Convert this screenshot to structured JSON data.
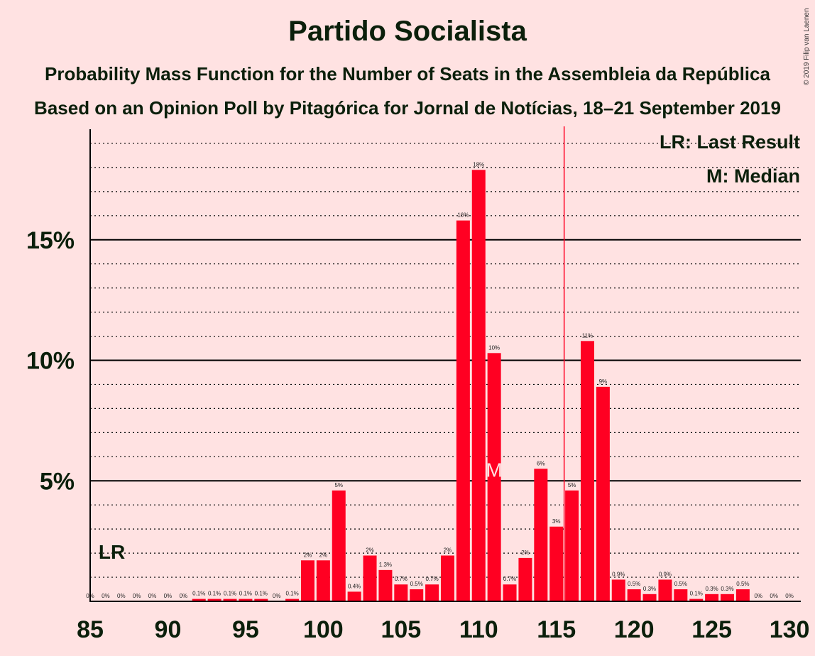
{
  "header": {
    "title": "Partido Socialista",
    "subtitle1": "Probability Mass Function for the Number of Seats in the Assembleia da República",
    "subtitle2": "Based on an Opinion Poll by Pitagórica for Jornal de Notícias, 18–21 September 2019",
    "copyright": "© 2019 Filip van Laenen"
  },
  "colors": {
    "bar": "#ff0022",
    "background": "#ffe2e2",
    "text": "#0b1f0b",
    "median_marker": "#ffe2e2",
    "last_result_line": "#ff0022"
  },
  "chart_data": {
    "type": "bar",
    "x": [
      85,
      86,
      87,
      88,
      89,
      90,
      91,
      92,
      93,
      94,
      95,
      96,
      97,
      98,
      99,
      100,
      101,
      102,
      103,
      104,
      105,
      106,
      107,
      108,
      109,
      110,
      111,
      112,
      113,
      114,
      115,
      116,
      117,
      118,
      119,
      120,
      121,
      122,
      123,
      124,
      125,
      126,
      127,
      128,
      129,
      130
    ],
    "values": [
      0,
      0,
      0,
      0,
      0,
      0,
      0,
      0.1,
      0.1,
      0.1,
      0.1,
      0.1,
      0,
      0.1,
      1.7,
      1.7,
      4.6,
      0.4,
      1.9,
      1.3,
      0.7,
      0.5,
      0.7,
      1.9,
      15.8,
      17.9,
      10.3,
      0.7,
      1.8,
      5.5,
      3.1,
      4.6,
      10.8,
      8.9,
      0.9,
      0.5,
      0.3,
      0.9,
      0.5,
      0.1,
      0.3,
      0.3,
      0.5,
      0,
      0,
      0
    ],
    "data_labels": [
      "0%",
      "0%",
      "0%",
      "0%",
      "0%",
      "0%",
      "0%",
      "0.1%",
      "0.1%",
      "0.1%",
      "0.1%",
      "0.1%",
      "0%",
      "0.1%",
      "2%",
      "2%",
      "5%",
      "0.4%",
      "2%",
      "1.3%",
      "0.7%",
      "0.5%",
      "0.7%",
      "2%",
      "16%",
      "18%",
      "10%",
      "0.7%",
      "2%",
      "6%",
      "3%",
      "5%",
      "11%",
      "9%",
      "0.9%",
      "0.5%",
      "0.3%",
      "0.9%",
      "0.5%",
      "0.1%",
      "0.3%",
      "0.3%",
      "0.5%",
      "0%",
      "0%",
      "0%"
    ],
    "xlim": [
      85,
      130
    ],
    "ylim": [
      0,
      19
    ],
    "yticks": [
      5,
      10,
      15
    ],
    "ytick_labels": [
      "5%",
      "10%",
      "15%"
    ],
    "minor_gridlines_every": 1,
    "xticks": [
      85,
      90,
      95,
      100,
      105,
      110,
      115,
      120,
      125,
      130
    ],
    "xtick_labels": [
      "85",
      "90",
      "95",
      "100",
      "105",
      "110",
      "115",
      "120",
      "125",
      "130"
    ],
    "median_seat": 111,
    "median_marker": "M",
    "last_result_seat": 115.5,
    "lr_label_seat": 86,
    "lr_label": "LR",
    "legend": {
      "position": "top-right",
      "items": [
        "LR: Last Result",
        "M: Median"
      ]
    },
    "grid": true
  }
}
